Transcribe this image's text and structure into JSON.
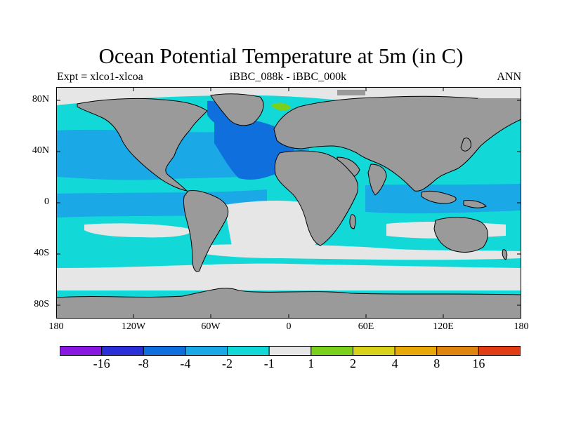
{
  "title": "Ocean Potential Temperature at 5m (in C)",
  "left_label": "Expt = xlco1-xlcoa",
  "center_label": "iBBC_088k - iBBC_000k",
  "right_label": "ANN",
  "y_ticks": [
    "80N",
    "40N",
    "0",
    "40S",
    "80S"
  ],
  "x_ticks": [
    "180",
    "120W",
    "60W",
    "0",
    "60E",
    "120E",
    "180"
  ],
  "colorbar": {
    "labels": [
      "-16",
      "-8",
      "-4",
      "-2",
      "-1",
      "1",
      "2",
      "4",
      "8",
      "16"
    ],
    "colors": [
      "#8a17e0",
      "#2a2fd8",
      "#0f6fdc",
      "#1aa8e6",
      "#12d8d8",
      "#e6e6e6",
      "#7ad01a",
      "#d8d21a",
      "#e8a80a",
      "#e08410",
      "#e03c16"
    ]
  },
  "colors": {
    "land": "#9a9a9a",
    "coast": "#000000",
    "ocean_minus1": "#12d8d8",
    "ocean_minus2": "#1aa8e6",
    "ocean_minus4": "#0f6fdc",
    "ocean_near0": "#e6e6e6",
    "ocean_plus1": "#7ad01a"
  }
}
